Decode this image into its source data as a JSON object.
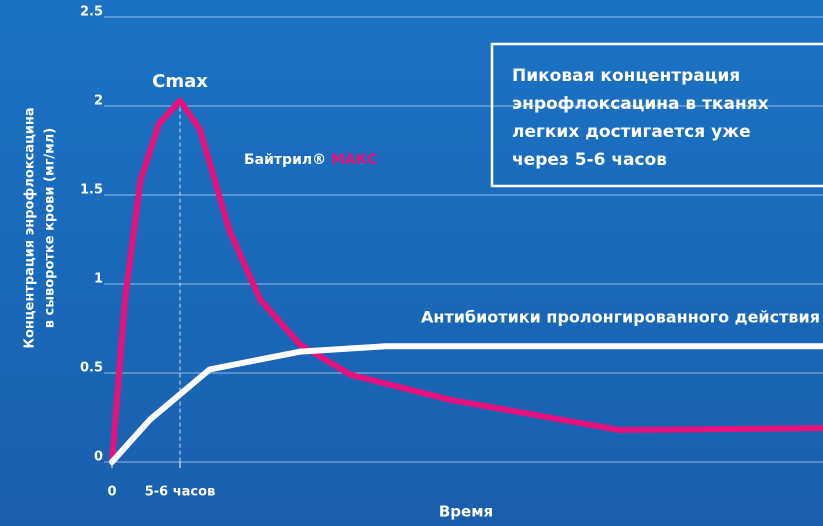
{
  "chart_data": {
    "type": "line",
    "y_label": [
      "Концентрация энрофлоксацина",
      "в сыворотке крови (мг/мл)"
    ],
    "x_label": "Время",
    "annotation": "Cmax",
    "callout": [
      "Пиковая концентрация",
      "энрофлоксацина в тканях",
      "легких достигается уже",
      "через 5-6 часов"
    ],
    "xlim": [
      0,
      57.5
    ],
    "xticks": [
      0,
      {
        "value": 5.5,
        "label": "5-6 часов"
      }
    ],
    "ylim": [
      0,
      2.5
    ],
    "yticks": [
      0,
      0.5,
      1,
      1.5,
      2,
      2.5
    ],
    "grid": true,
    "series": [
      {
        "name": "Байтрил® МАКС",
        "color": "#e5127d",
        "x": [
          0,
          1.05,
          2.3,
          3.8,
          5.5,
          7.1,
          9.5,
          12,
          15.2,
          19.3,
          27.3,
          41,
          57.5
        ],
        "values": [
          0,
          0.91,
          1.58,
          1.9,
          2.03,
          1.87,
          1.3,
          0.91,
          0.66,
          0.49,
          0.35,
          0.18,
          0.19
        ]
      },
      {
        "name": "Антибиотики пролонгированного действия",
        "color": "#ffffff",
        "x": [
          0,
          3.1,
          7.9,
          15.2,
          22.1,
          57.5
        ],
        "values": [
          0,
          0.24,
          0.52,
          0.62,
          0.65,
          0.65
        ]
      }
    ]
  }
}
